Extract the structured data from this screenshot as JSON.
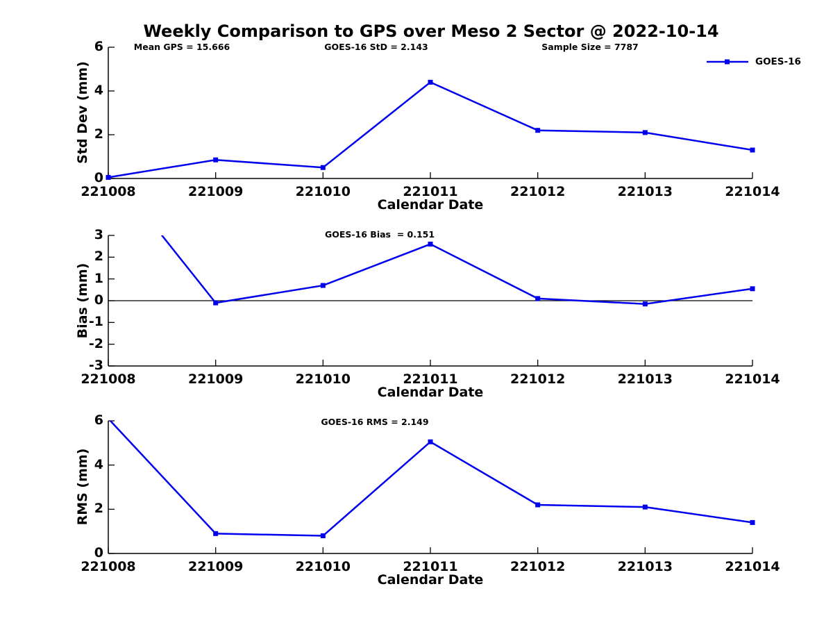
{
  "title": "Weekly Comparison to GPS over Meso 2 Sector @ 2022-10-14",
  "legend": {
    "label": "GOES-16",
    "position": "top-right"
  },
  "colors": {
    "series_line": "#0000EE",
    "axis": "#000000",
    "zero_line": "#000000",
    "background": "#FFFFFF",
    "text": "#000000"
  },
  "chart_data": [
    {
      "type": "line",
      "annotations": [
        "Mean GPS = 15.666",
        "GOES-16 StD = 2.143",
        "Sample Size = 7787"
      ],
      "categories": [
        "221008",
        "221009",
        "221010",
        "221011",
        "221012",
        "221013",
        "221014"
      ],
      "series": [
        {
          "name": "GOES-16",
          "values": [
            0.05,
            0.85,
            0.5,
            4.4,
            2.2,
            2.1,
            1.3
          ]
        }
      ],
      "xlabel": "Calendar Date",
      "ylabel": "Std Dev (mm)",
      "ylim": [
        0,
        6
      ],
      "yticks": [
        0,
        2,
        4,
        6
      ],
      "grid": false,
      "marker": "square",
      "legend_entries": [
        "GOES-16"
      ]
    },
    {
      "type": "line",
      "annotations": [
        "GOES-16 Bias  = 0.151"
      ],
      "categories": [
        "221008",
        "221009",
        "221010",
        "221011",
        "221012",
        "221013",
        "221014"
      ],
      "series": [
        {
          "name": "GOES-16",
          "values": [
            6.1,
            -0.1,
            0.7,
            2.6,
            0.1,
            -0.15,
            0.55
          ]
        }
      ],
      "xlabel": "Calendar Date",
      "ylabel": "Bias (mm)",
      "ylim": [
        -3,
        3
      ],
      "yticks": [
        3,
        2,
        1,
        0,
        -1,
        -2,
        -3
      ],
      "zero_line": true,
      "grid": false,
      "marker": "square"
    },
    {
      "type": "line",
      "annotations": [
        "GOES-16 RMS = 2.149"
      ],
      "categories": [
        "221008",
        "221009",
        "221010",
        "221011",
        "221012",
        "221013",
        "221014"
      ],
      "series": [
        {
          "name": "GOES-16",
          "values": [
            6.1,
            0.9,
            0.8,
            5.05,
            2.2,
            2.1,
            1.4
          ]
        }
      ],
      "xlabel": "Calendar Date",
      "ylabel": "RMS (mm)",
      "ylim": [
        0,
        6
      ],
      "yticks": [
        0,
        2,
        4,
        6
      ],
      "grid": false,
      "marker": "square"
    }
  ]
}
